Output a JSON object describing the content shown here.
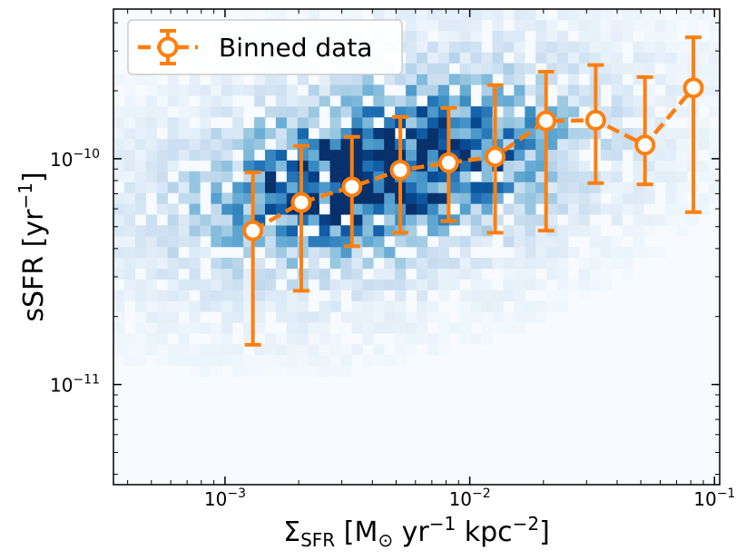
{
  "chart_data": {
    "type": "scatter",
    "title": "",
    "xlabel": "Σ_SFR [M_⊙ yr^-1 kpc^-2]",
    "ylabel": "sSFR [yr^-1]",
    "xscale": "log",
    "yscale": "log",
    "xlim": [
      0.00035,
      0.105
    ],
    "ylim": [
      3.6e-12,
      4.6e-10
    ],
    "grid": false,
    "legend": {
      "placement": "top-left",
      "entries": [
        "Binned data"
      ]
    },
    "x_ticks": [
      {
        "value": 0.001,
        "base": "10",
        "exp": "−3"
      },
      {
        "value": 0.01,
        "base": "10",
        "exp": "−2"
      },
      {
        "value": 0.1,
        "base": "10",
        "exp": "−1"
      }
    ],
    "y_ticks": [
      {
        "value": 1e-11,
        "base": "10",
        "exp": "−11"
      },
      {
        "value": 1e-10,
        "base": "10",
        "exp": "−10"
      }
    ],
    "series": [
      {
        "name": "Binned data",
        "color": "#ff7f0e",
        "x": [
          0.0013,
          0.00205,
          0.0033,
          0.0052,
          0.0082,
          0.0127,
          0.0205,
          0.0327,
          0.052,
          0.082
        ],
        "y": [
          4.8e-11,
          6.4e-11,
          7.5e-11,
          8.9e-11,
          9.6e-11,
          1.02e-10,
          1.47e-10,
          1.48e-10,
          1.15e-10,
          2.06e-10
        ],
        "yerr_low": [
          1.5e-11,
          2.6e-11,
          4.1e-11,
          4.7e-11,
          5.3e-11,
          4.7e-11,
          4.8e-11,
          7.8e-11,
          7.7e-11,
          5.8e-11
        ],
        "yerr_high": [
          8.7e-11,
          1.14e-10,
          1.25e-10,
          1.53e-10,
          1.68e-10,
          2.12e-10,
          2.43e-10,
          2.6e-10,
          2.3e-10,
          3.45e-10
        ]
      }
    ],
    "background": {
      "type": "2d-histogram",
      "colormap": "Blues",
      "density_peak": {
        "log10_x": -2.35,
        "log10_y": -10.05
      }
    }
  }
}
